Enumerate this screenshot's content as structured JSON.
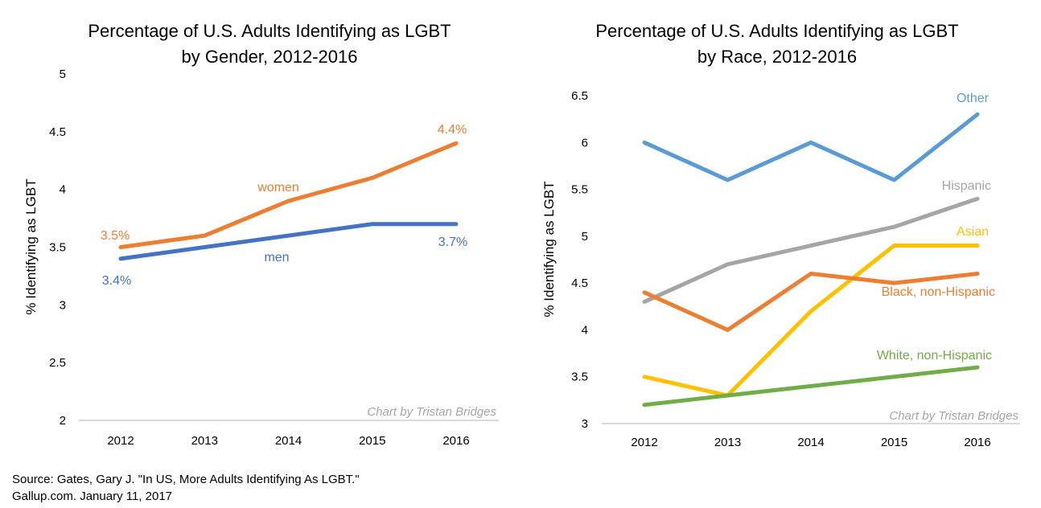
{
  "chart_data": [
    {
      "type": "line",
      "title": [
        "Percentage of U.S. Adults Identifying as LGBT",
        "by Gender, 2012-2016"
      ],
      "xlabel": "",
      "ylabel": "% Identifying as LGBT",
      "categories": [
        "2012",
        "2013",
        "2014",
        "2015",
        "2016"
      ],
      "ylim": [
        2,
        5
      ],
      "yticks": [
        2,
        2.5,
        3,
        3.5,
        4,
        4.5,
        5
      ],
      "grid": false,
      "legend": "inline labels",
      "series": [
        {
          "name": "women",
          "color": "#ED7D31",
          "values": [
            3.5,
            3.6,
            3.9,
            4.1,
            4.4
          ]
        },
        {
          "name": "men",
          "color": "#4472C4",
          "values": [
            3.4,
            3.5,
            3.6,
            3.7,
            3.7
          ]
        }
      ],
      "annotations": [
        {
          "text": "3.5%",
          "series": "women",
          "color": "#ED7D31"
        },
        {
          "text": "4.4%",
          "series": "women",
          "color": "#ED7D31"
        },
        {
          "text": "3.4%",
          "series": "men",
          "color": "#4472C4"
        },
        {
          "text": "3.7%",
          "series": "men",
          "color": "#4472C4"
        }
      ],
      "credit": "Chart by Tristan Bridges"
    },
    {
      "type": "line",
      "title": [
        "Percentage of U.S. Adults Identifying as LGBT",
        "by Race, 2012-2016"
      ],
      "xlabel": "",
      "ylabel": "% Identifying as LGBT",
      "categories": [
        "2012",
        "2013",
        "2014",
        "2015",
        "2016"
      ],
      "ylim": [
        3,
        6.5
      ],
      "yticks": [
        3,
        3.5,
        4,
        4.5,
        5,
        5.5,
        6,
        6.5
      ],
      "grid": false,
      "legend": "inline labels",
      "series": [
        {
          "name": "Other",
          "color": "#5B9BD5",
          "values": [
            6.0,
            5.6,
            6.0,
            5.6,
            6.3
          ]
        },
        {
          "name": "Hispanic",
          "color": "#A5A5A5",
          "values": [
            4.3,
            4.7,
            4.9,
            5.1,
            5.4
          ]
        },
        {
          "name": "Asian",
          "color": "#FFC000",
          "values": [
            3.5,
            3.3,
            4.2,
            4.9,
            4.9
          ]
        },
        {
          "name": "Black, non-Hispanic",
          "color": "#ED7D31",
          "values": [
            4.4,
            4.0,
            4.6,
            4.5,
            4.6
          ]
        },
        {
          "name": "White, non-Hispanic",
          "color": "#70AD47",
          "values": [
            3.2,
            3.3,
            3.4,
            3.5,
            3.6
          ]
        }
      ],
      "credit": "Chart by Tristan Bridges"
    }
  ],
  "source": {
    "line1": "Source: Gates, Gary  J. \"In US, More Adults Identifying As LGBT.\"",
    "line2": "Gallup.com. January 11, 2017"
  }
}
